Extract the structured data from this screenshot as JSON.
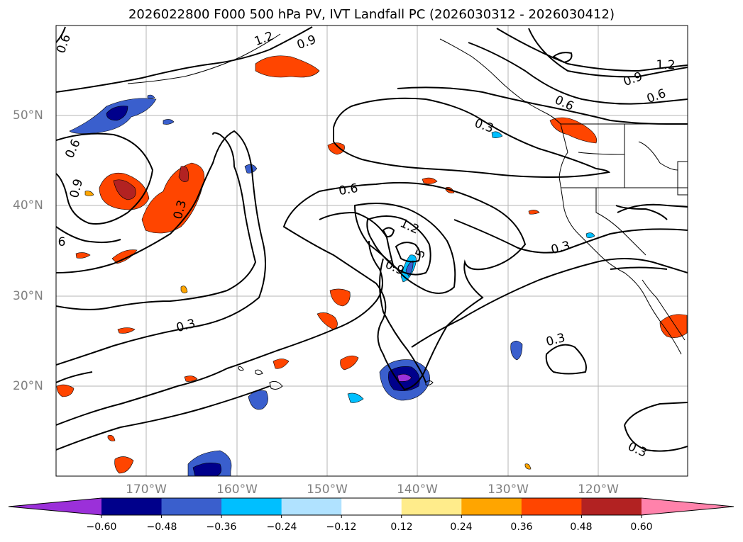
{
  "title": "2026022800 F000 500 hPa PV, IVT Landfall PC (2026030312 - 2026030412)",
  "lat_labels": [
    "50°N",
    "40°N",
    "30°N",
    "20°N"
  ],
  "lon_labels": [
    "170°W",
    "160°W",
    "150°W",
    "140°W",
    "130°W",
    "120°W"
  ],
  "contour_labels": [
    "0.6",
    "1.2",
    "0.9",
    "1.2",
    "0.9",
    "0.6",
    "0.6",
    "0.3",
    "0.6",
    "0.9",
    "6",
    "0.3",
    "0.6",
    "1.2",
    "5",
    "0.9",
    "0.3",
    "0.3",
    "0.3",
    "0.3"
  ],
  "colorbar": {
    "ticks": [
      "−0.60",
      "−0.48",
      "−0.36",
      "−0.24",
      "−0.12",
      "0.12",
      "0.24",
      "0.36",
      "0.48",
      "0.60"
    ],
    "colors": [
      "#9b30d9",
      "#00008b",
      "#3a5fcd",
      "#00bfff",
      "#b0e2ff",
      "#ffffff",
      "#ffec8b",
      "#ffa500",
      "#ff4500",
      "#b22222",
      "#ff82ab"
    ]
  }
}
